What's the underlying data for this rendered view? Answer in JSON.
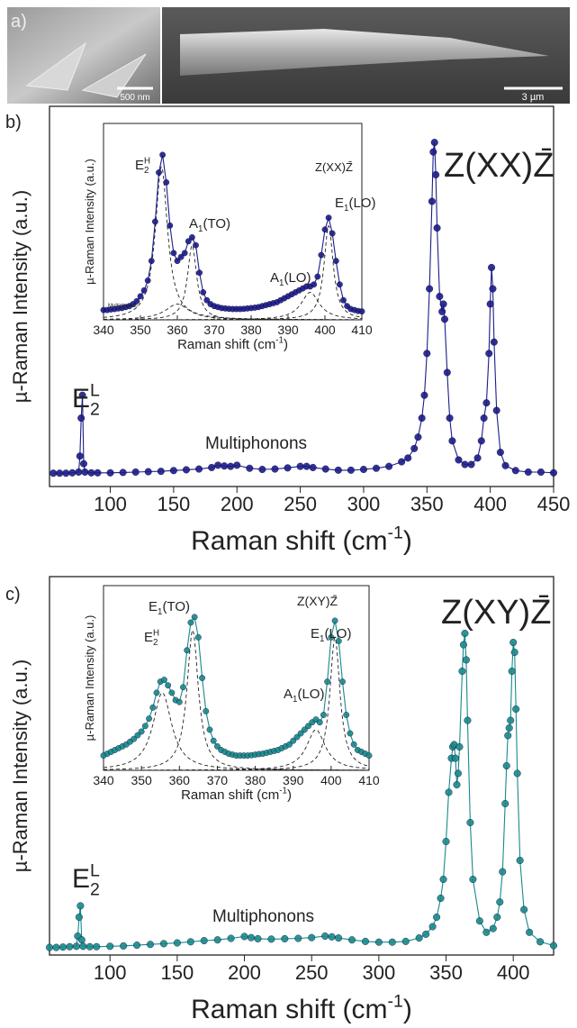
{
  "panels": {
    "a": "a)",
    "b": "b)",
    "c": "c)"
  },
  "sem": {
    "scale_left": "500 nm",
    "scale_right": "3 µm"
  },
  "chart_data": [
    {
      "type": "line",
      "markers": true,
      "x_label": {
        "text": "Raman shift (cm",
        "sup": "-1",
        "tail": ")"
      },
      "y_label": "µ-Raman Intensity (a.u.)",
      "xlim": [
        52,
        450
      ],
      "ylim": [
        0,
        100
      ],
      "xticks": [
        100,
        150,
        200,
        250,
        300,
        350,
        400,
        450
      ],
      "x": [
        55,
        60,
        65,
        70,
        75,
        76,
        77,
        78,
        79,
        80,
        85,
        90,
        100,
        110,
        120,
        130,
        140,
        150,
        160,
        170,
        180,
        185,
        190,
        195,
        200,
        210,
        220,
        230,
        240,
        250,
        255,
        260,
        270,
        280,
        290,
        300,
        310,
        320,
        330,
        335,
        340,
        343,
        346,
        348,
        350,
        352,
        354,
        355,
        356,
        357,
        358,
        360,
        362,
        363,
        364,
        366,
        368,
        370,
        375,
        380,
        385,
        390,
        393,
        395,
        397,
        399,
        400,
        401,
        402,
        403,
        405,
        408,
        412,
        420,
        430,
        440,
        450
      ],
      "series": [
        {
          "color": "#1c1c8a",
          "values": [
            3.5,
            3.5,
            3.5,
            3.6,
            3.8,
            8,
            18,
            24,
            6,
            3.8,
            3.6,
            3.6,
            3.6,
            3.7,
            3.8,
            3.9,
            4,
            4.2,
            4.4,
            4.6,
            5,
            5.6,
            5.4,
            5.3,
            5.6,
            4.8,
            4.5,
            4.6,
            4.9,
            5.3,
            5.3,
            5,
            4.6,
            4.3,
            4.3,
            4.5,
            4.8,
            5.3,
            6.5,
            7.5,
            10,
            13,
            18,
            24,
            35,
            52,
            75,
            88,
            90.5,
            82,
            68,
            50,
            46,
            48,
            44,
            30,
            18,
            12,
            7,
            5.8,
            5.8,
            7.5,
            12,
            18,
            22,
            35,
            48,
            57.6,
            52,
            38,
            20,
            9,
            5.5,
            4.2,
            3.8,
            3.8,
            3.6
          ]
        }
      ],
      "annotations": [
        "Z(XX)Z̄",
        {
          "text": "E",
          "sub": "2",
          "sup": "L"
        },
        "Multiphonons"
      ]
    },
    {
      "type": "line",
      "markers": true,
      "x_label": {
        "text": "Raman shift (cm",
        "sup": "-1",
        "tail": ")"
      },
      "y_label": "µ-Raman Intensity (a.u.)",
      "xlim": [
        340,
        410
      ],
      "ylim": [
        0,
        100
      ],
      "xticks": [
        340,
        350,
        360,
        370,
        380,
        390,
        400,
        410
      ],
      "x": [
        340,
        341,
        342,
        343,
        344,
        345,
        346,
        347,
        348,
        349,
        350,
        351,
        352,
        353,
        354,
        355,
        356,
        357,
        358,
        359,
        360,
        361,
        362,
        363,
        364,
        365,
        366,
        367,
        368,
        369,
        370,
        371,
        372,
        373,
        374,
        375,
        376,
        377,
        378,
        379,
        380,
        381,
        382,
        383,
        384,
        385,
        386,
        387,
        388,
        389,
        390,
        391,
        392,
        393,
        394,
        395,
        396,
        397,
        398,
        399,
        400,
        401,
        402,
        403,
        404,
        405,
        406,
        407,
        408,
        409,
        410
      ],
      "series": [
        {
          "color": "#1c1c8a",
          "values": [
            5,
            5,
            5.3,
            5.5,
            5.8,
            6,
            6.5,
            7,
            8,
            9.5,
            12,
            15,
            20,
            30,
            50,
            75,
            84,
            70,
            48,
            34,
            30,
            32,
            34,
            40,
            42,
            38,
            24,
            14,
            10,
            8,
            7,
            6.5,
            6,
            5.8,
            5.6,
            5.5,
            5.5,
            5.5,
            5.6,
            5.8,
            6,
            6.2,
            6.5,
            7,
            7.5,
            8,
            8.5,
            9,
            10,
            11,
            12,
            13,
            14,
            15,
            16,
            17,
            17,
            18,
            22,
            33,
            46,
            52,
            44,
            30,
            18,
            10,
            7,
            5.5,
            5,
            4.5,
            4.3
          ]
        }
      ],
      "fits": [
        {
          "center": 355.7,
          "hwhm": 2,
          "height": 78
        },
        {
          "center": 364,
          "hwhm": 1.5,
          "height": 38
        },
        {
          "center": 360,
          "hwhm": 4,
          "height": 8
        },
        {
          "center": 396,
          "hwhm": 3,
          "height": 14
        },
        {
          "center": 401,
          "hwhm": 1.5,
          "height": 48
        }
      ],
      "annotations": [
        {
          "text": "E",
          "sub": "2",
          "sup": "H"
        },
        {
          "text": "A",
          "sub": "1",
          "tail": "(TO)"
        },
        {
          "text": "A",
          "sub": "1",
          "tail": "(LO)"
        },
        {
          "text": "E",
          "sub": "1",
          "tail": "(LO)"
        },
        "Z(XX)Z̄",
        "Multiphonon"
      ]
    },
    {
      "type": "line",
      "markers": true,
      "x_label": {
        "text": "Raman shift (cm",
        "sup": "-1",
        "tail": ")"
      },
      "y_label": "µ-Raman Intensity (a.u.)",
      "xlim": [
        55,
        430
      ],
      "ylim": [
        0,
        100
      ],
      "xticks": [
        100,
        150,
        200,
        250,
        300,
        350,
        400
      ],
      "x": [
        55,
        60,
        65,
        70,
        75,
        76,
        77,
        78,
        79,
        80,
        85,
        90,
        100,
        110,
        120,
        130,
        140,
        150,
        160,
        170,
        180,
        190,
        200,
        205,
        210,
        220,
        230,
        240,
        250,
        260,
        265,
        270,
        280,
        290,
        300,
        310,
        320,
        330,
        335,
        340,
        343,
        346,
        348,
        350,
        352,
        354,
        355,
        356,
        357,
        358,
        359,
        360,
        362,
        363,
        364,
        365,
        366,
        368,
        370,
        375,
        380,
        385,
        388,
        390,
        392,
        394,
        395,
        396,
        397,
        398,
        399,
        400,
        401,
        402,
        403,
        405,
        408,
        412,
        420,
        430
      ],
      "series": [
        {
          "color": "#178a8a",
          "values": [
            2,
            2,
            2.1,
            2.2,
            2.3,
            5,
            10,
            13,
            4,
            2.3,
            2.2,
            2.2,
            2.3,
            2.4,
            2.6,
            2.8,
            3,
            3.2,
            3.5,
            3.8,
            4,
            4.4,
            4.9,
            4.6,
            4.3,
            4.2,
            4.3,
            4.4,
            4.6,
            5,
            4.8,
            4.5,
            4,
            3.6,
            3.4,
            3.4,
            3.6,
            4.5,
            5.5,
            7.5,
            10,
            15,
            20,
            30,
            43,
            52,
            55,
            55.6,
            52,
            45,
            48,
            55,
            75,
            82,
            85,
            78,
            62,
            35,
            20,
            9,
            6,
            7,
            10,
            14,
            22,
            40,
            50,
            58,
            60,
            62,
            75,
            82.6,
            80,
            65,
            48,
            25,
            12,
            6,
            3.5,
            2.5
          ]
        }
      ],
      "annotations": [
        "Z(XY)Z̄",
        {
          "text": "E",
          "sub": "2",
          "sup": "L"
        },
        "Multiphonons"
      ]
    },
    {
      "type": "line",
      "markers": true,
      "x_label": {
        "text": "Raman shift (cm",
        "sup": "-1",
        "tail": ")"
      },
      "y_label": "µ-Raman Intensity (a.u.)",
      "xlim": [
        340,
        410
      ],
      "ylim": [
        0,
        100
      ],
      "xticks": [
        340,
        350,
        360,
        370,
        380,
        390,
        400,
        410
      ],
      "x": [
        340,
        341,
        342,
        343,
        344,
        345,
        346,
        347,
        348,
        349,
        350,
        351,
        352,
        353,
        354,
        355,
        356,
        357,
        358,
        359,
        360,
        361,
        362,
        363,
        364,
        365,
        366,
        367,
        368,
        369,
        370,
        371,
        372,
        373,
        374,
        375,
        376,
        377,
        378,
        379,
        380,
        381,
        382,
        383,
        384,
        385,
        386,
        387,
        388,
        389,
        390,
        391,
        392,
        393,
        394,
        395,
        396,
        397,
        398,
        399,
        400,
        401,
        402,
        403,
        404,
        405,
        406,
        407,
        408,
        409,
        410
      ],
      "series": [
        {
          "color": "#178a8a",
          "values": [
            8,
            9,
            10,
            11,
            12,
            13,
            14,
            15.5,
            17,
            19,
            21,
            24,
            28,
            34,
            42,
            48,
            49,
            46,
            42,
            38,
            37,
            45,
            65,
            80,
            83,
            72,
            50,
            32,
            22,
            16,
            13,
            11,
            10,
            9,
            8.5,
            8,
            8,
            8,
            8,
            8.2,
            8.5,
            8.8,
            9,
            9.5,
            10,
            10.5,
            11,
            12,
            13,
            14,
            16,
            18,
            20,
            22,
            24,
            26,
            27.5,
            26,
            30,
            48,
            72,
            81,
            70,
            48,
            30,
            20,
            14,
            11,
            10,
            9,
            8
          ]
        }
      ],
      "fits": [
        {
          "center": 355.5,
          "hwhm": 3,
          "height": 42
        },
        {
          "center": 363.5,
          "hwhm": 1.8,
          "height": 76
        },
        {
          "center": 396,
          "hwhm": 3,
          "height": 22
        },
        {
          "center": 401,
          "hwhm": 1.6,
          "height": 72
        }
      ],
      "annotations": [
        {
          "text": "E",
          "sub": "2",
          "sup": "H"
        },
        {
          "text": "E",
          "sub": "1",
          "tail": "(TO)"
        },
        {
          "text": "A",
          "sub": "1",
          "tail": "(LO)"
        },
        {
          "text": "E",
          "sub": "1",
          "tail": "(LO)"
        },
        "Z(XY)Z̄"
      ]
    }
  ]
}
